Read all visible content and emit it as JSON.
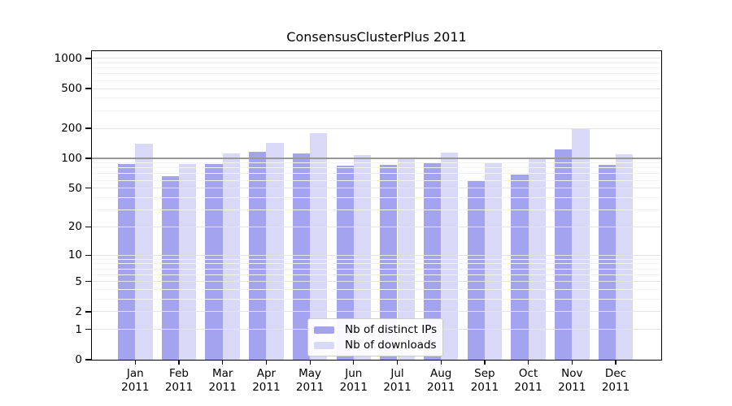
{
  "chart_data": {
    "type": "bar",
    "title": "ConsensusClusterPlus 2011",
    "categories": [
      "Jan 2011",
      "Feb 2011",
      "Mar 2011",
      "Apr 2011",
      "May 2011",
      "Jun 2011",
      "Jul 2011",
      "Aug 2011",
      "Sep 2011",
      "Oct 2011",
      "Nov 2011",
      "Dec 2011"
    ],
    "series": [
      {
        "name": "Nb of distinct IPs",
        "color": "#a3a3f0",
        "values": [
          88,
          66,
          88,
          117,
          113,
          84,
          86,
          90,
          60,
          69,
          124,
          86
        ]
      },
      {
        "name": "Nb of downloads",
        "color": "#d9d9f7",
        "values": [
          140,
          87,
          112,
          142,
          179,
          108,
          100,
          115,
          91,
          101,
          197,
          109
        ]
      }
    ],
    "yticks": [
      0,
      1,
      2,
      5,
      10,
      20,
      50,
      100,
      200,
      500,
      1000
    ],
    "ylim": [
      0,
      1180
    ],
    "yscale": "pseudo-log: y position proportional to log10(value+1)",
    "grid": "log minor gridlines shown; darker reference line at 100",
    "reference_line_value": 100,
    "legend_position": "bottom-center inside plot",
    "colors": {
      "grid_minor": "#f2f2f2",
      "grid_labeled": "#e4e4e4",
      "grid_reference": "#999999",
      "axis": "#000000",
      "background": "#ffffff"
    }
  }
}
